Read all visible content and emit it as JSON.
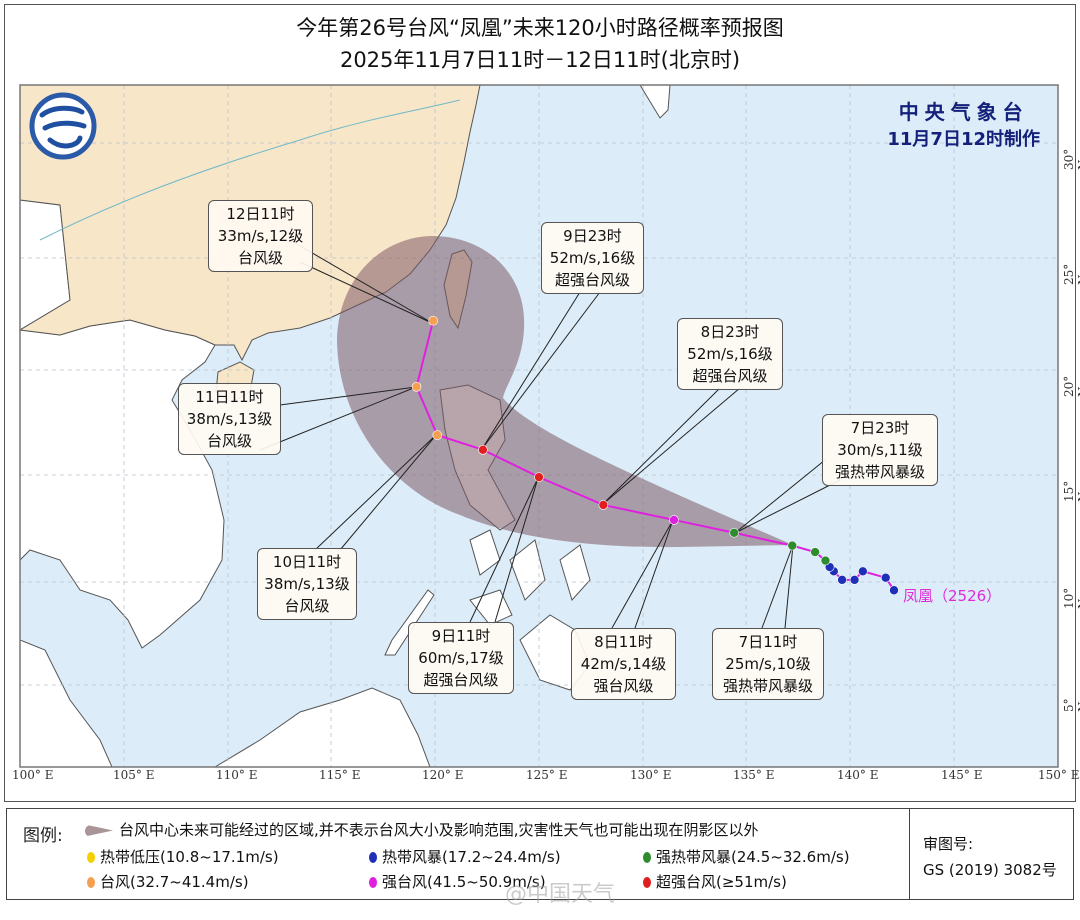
{
  "header": {
    "title": "今年第26号台风“凤凰”未来120小时路径概率预报图",
    "subtitle": "2025年11月7日11时－12日11时(北京时)"
  },
  "agency": {
    "name": "中央气象台",
    "issued": "11月7日12时制作"
  },
  "logo_icon": "cma-logo-icon",
  "map": {
    "lon_labels": [
      "100° E",
      "105° E",
      "110° E",
      "115° E",
      "120° E",
      "125° E",
      "130° E",
      "135° E",
      "140° E",
      "145° E",
      "150° E"
    ],
    "lat_labels": [
      "30° N",
      "25° N",
      "20° N",
      "15° N",
      "10° N",
      "5° N"
    ],
    "colors": {
      "sea": "#dcedf9",
      "china_land": "#f8e6c8",
      "other_land": "#ffffff",
      "cone": "#8b6b74",
      "track": "#e020e0"
    }
  },
  "storm": {
    "name": "凤凰（2526）",
    "past_track": [
      {
        "lon": 142.1,
        "lat": 9.6,
        "cat": "ts"
      },
      {
        "lon": 141.7,
        "lat": 10.2,
        "cat": "ts"
      },
      {
        "lon": 140.6,
        "lat": 10.5,
        "cat": "ts"
      },
      {
        "lon": 140.2,
        "lat": 10.1,
        "cat": "ts"
      },
      {
        "lon": 139.6,
        "lat": 10.1,
        "cat": "ts"
      },
      {
        "lon": 139.2,
        "lat": 10.5,
        "cat": "ts"
      },
      {
        "lon": 139.0,
        "lat": 10.7,
        "cat": "ts"
      },
      {
        "lon": 138.8,
        "lat": 11.0,
        "cat": "sts"
      },
      {
        "lon": 138.3,
        "lat": 11.4,
        "cat": "sts"
      }
    ],
    "forecast": [
      {
        "time": "7日11时",
        "wind": "25m/s,10级",
        "level": "强热带风暴级",
        "lon": 137.2,
        "lat": 11.7,
        "cat": "sts"
      },
      {
        "time": "7日23时",
        "wind": "30m/s,11级",
        "level": "强热带风暴级",
        "lon": 134.4,
        "lat": 12.3,
        "cat": "sts"
      },
      {
        "time": "8日11时",
        "wind": "42m/s,14级",
        "level": "强台风级",
        "lon": 131.5,
        "lat": 12.9,
        "cat": "sty"
      },
      {
        "time": "8日23时",
        "wind": "52m/s,16级",
        "level": "超强台风级",
        "lon": 128.1,
        "lat": 13.6,
        "cat": "super"
      },
      {
        "time": "9日11时",
        "wind": "60m/s,17级",
        "level": "超强台风级",
        "lon": 125.0,
        "lat": 14.9,
        "cat": "super"
      },
      {
        "time": "9日23时",
        "wind": "52m/s,16级",
        "level": "超强台风级",
        "lon": 122.3,
        "lat": 16.2,
        "cat": "super"
      },
      {
        "time": "10日11时",
        "wind": "38m/s,13级",
        "level": "台风级",
        "lon": 120.1,
        "lat": 16.9,
        "cat": "ty"
      },
      {
        "time": "11日11时",
        "wind": "38m/s,13级",
        "level": "台风级",
        "lon": 119.1,
        "lat": 19.2,
        "cat": "ty"
      },
      {
        "time": "12日11时",
        "wind": "33m/s,12级",
        "level": "台风级",
        "lon": 119.9,
        "lat": 22.2,
        "cat": "ty"
      }
    ]
  },
  "legend": {
    "title": "图例:",
    "cone_text": "台风中心未来可能经过的区域,并不表示台风大小及影响范围,灾害性天气也可能出现在阴影区以外",
    "categories": [
      {
        "key": "td",
        "label": "热带低压(10.8~17.1m/s)",
        "color": "#f5d000"
      },
      {
        "key": "ts",
        "label": "热带风暴(17.2~24.4m/s)",
        "color": "#1f2fb8"
      },
      {
        "key": "sts",
        "label": "强热带风暴(24.5~32.6m/s)",
        "color": "#2e8b2e"
      },
      {
        "key": "ty",
        "label": "台风(32.7~41.4m/s)",
        "color": "#f5a050"
      },
      {
        "key": "sty",
        "label": "强台风(41.5~50.9m/s)",
        "color": "#e020e0"
      },
      {
        "key": "super",
        "label": "超强台风(≥51m/s)",
        "color": "#e02020"
      }
    ],
    "review_label": "审图号:",
    "review_number": "GS (2019) 3082号"
  },
  "watermark": "@中国天气"
}
